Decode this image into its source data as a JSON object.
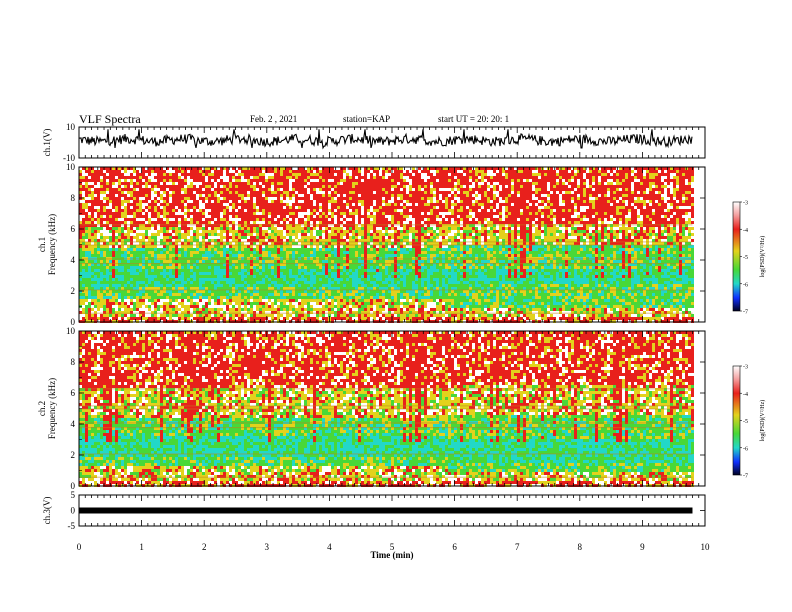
{
  "header": {
    "title": "VLF Spectra",
    "date": "Feb. 2 , 2021",
    "station": "station=KAP",
    "start": "start  UT =   20: 20: 1"
  },
  "chart_data": [
    {
      "type": "line",
      "name": "ch1-waveform",
      "ylabel": "ch.1(V)",
      "ylim": [
        -10,
        10
      ],
      "yticks": [
        "10",
        "-10"
      ],
      "xlim": [
        0,
        10
      ],
      "trace": {
        "mean": 1.5,
        "amplitude": 3.2,
        "end_min": 9.8
      }
    },
    {
      "type": "heatmap",
      "name": "ch1-spectrogram",
      "ylabel": "ch.1\nFrequency  (kHz)",
      "ylim": [
        0,
        10
      ],
      "yticks": [
        "0",
        "2",
        "4",
        "6",
        "8",
        "10"
      ],
      "xlim": [
        0,
        10
      ],
      "data_end_min": 9.8,
      "change_at_min": 5.85,
      "bands_before": [
        [
          0,
          0.5,
          "red"
        ],
        [
          0.5,
          1.6,
          "yellow"
        ],
        [
          1.6,
          2.4,
          "green"
        ],
        [
          2.4,
          3.6,
          "cyan"
        ],
        [
          3.6,
          4.8,
          "green"
        ],
        [
          4.8,
          6.2,
          "yellow"
        ],
        [
          6.2,
          10,
          "red"
        ]
      ],
      "bands_after": [
        [
          0,
          0.5,
          "red"
        ],
        [
          0.5,
          1.0,
          "yellow"
        ],
        [
          1.0,
          2.6,
          "green"
        ],
        [
          2.6,
          3.6,
          "cyan"
        ],
        [
          3.6,
          5.0,
          "green"
        ],
        [
          5.0,
          6.4,
          "yellow"
        ],
        [
          6.4,
          10,
          "red"
        ]
      ]
    },
    {
      "type": "heatmap",
      "name": "ch2-spectrogram",
      "ylabel": "ch.2\nFrequency  (kHz)",
      "ylim": [
        0,
        10
      ],
      "yticks": [
        "0",
        "2",
        "4",
        "6",
        "8",
        "10"
      ],
      "xlim": [
        0,
        10
      ],
      "data_end_min": 9.8,
      "change_at_min": 5.85,
      "bands_before": [
        [
          0,
          0.4,
          "red"
        ],
        [
          0.4,
          1.4,
          "yellow"
        ],
        [
          1.4,
          2.0,
          "green"
        ],
        [
          2.0,
          3.4,
          "cyan"
        ],
        [
          3.4,
          4.4,
          "green"
        ],
        [
          4.4,
          6.4,
          "yellow"
        ],
        [
          6.4,
          10,
          "red"
        ]
      ],
      "bands_after": [
        [
          0,
          0.4,
          "red"
        ],
        [
          0.4,
          1.0,
          "yellow"
        ],
        [
          1.0,
          1.6,
          "green"
        ],
        [
          1.6,
          3.2,
          "cyan"
        ],
        [
          3.2,
          4.6,
          "green"
        ],
        [
          4.6,
          6.6,
          "yellow"
        ],
        [
          6.6,
          10,
          "red"
        ]
      ]
    },
    {
      "type": "line",
      "name": "ch3-trace",
      "ylabel": "ch.3(V)",
      "ylim": [
        -5,
        5
      ],
      "yticks": [
        "5",
        "0",
        "-5"
      ],
      "xlim": [
        0,
        10
      ],
      "trace": {
        "mean": 0,
        "amplitude": 0.25,
        "end_min": 9.8
      }
    }
  ],
  "xaxis": {
    "label": "Time  (min)",
    "ticks": [
      "0",
      "1",
      "2",
      "3",
      "4",
      "5",
      "6",
      "7",
      "8",
      "9",
      "10"
    ]
  },
  "colorbar": {
    "label": "log(PSD)(V²/Hz)",
    "ticks": [
      "-3",
      "-4",
      "-5",
      "-6",
      "-7"
    ],
    "range": [
      -7,
      -3
    ]
  },
  "colors": {
    "red": "#e8201c",
    "yellow": "#e3d21c",
    "green": "#48d838",
    "cyan": "#22d8c8",
    "white": "#ffffff",
    "black": "#000000"
  }
}
